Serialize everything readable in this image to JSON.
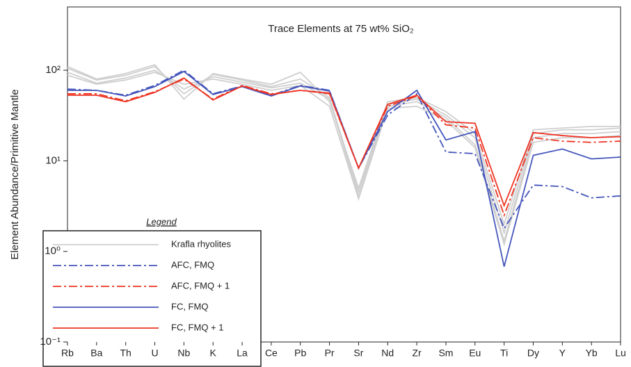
{
  "chart_data": {
    "type": "line",
    "title": "Trace Elements at 75 wt% SiO₂",
    "y_label": "Element Abundance/Primitive Mantle",
    "legend_title": "Legend",
    "log_scale": true,
    "categories": [
      "Rb",
      "Ba",
      "Th",
      "U",
      "Nb",
      "K",
      "La",
      "Ce",
      "Pb",
      "Pr",
      "Sr",
      "Nd",
      "Zr",
      "Sm",
      "Eu",
      "Ti",
      "Dy",
      "Y",
      "Yb",
      "Lu"
    ],
    "ylim": [
      0.1,
      500
    ],
    "yticks": [
      {
        "value": 0.1,
        "label": "10⁻¹"
      },
      {
        "value": 1,
        "label": "10⁰"
      },
      {
        "value": 10,
        "label": "10¹"
      },
      {
        "value": 100,
        "label": "10²"
      }
    ],
    "series": [
      {
        "name": "Krafla rhyolites",
        "color": "#cfcfcf",
        "dash": "solid",
        "samples": [
          [
            105,
            78,
            88,
            110,
            55,
            90,
            78,
            66,
            80,
            50,
            4.5,
            42,
            48,
            32,
            18,
            1.6,
            20,
            22,
            22,
            23
          ],
          [
            95,
            72,
            82,
            100,
            62,
            85,
            74,
            64,
            72,
            48,
            4.0,
            40,
            45,
            30,
            15,
            1.3,
            18,
            20,
            20,
            21
          ],
          [
            110,
            80,
            92,
            115,
            48,
            92,
            80,
            70,
            95,
            45,
            5.0,
            45,
            50,
            35,
            20,
            2.0,
            22,
            23,
            24,
            24
          ],
          [
            88,
            70,
            78,
            95,
            70,
            80,
            70,
            60,
            68,
            40,
            3.8,
            38,
            40,
            28,
            14,
            1.2,
            16,
            18,
            18,
            19
          ]
        ]
      },
      {
        "name": "AFC, FMQ",
        "color": "#4455bb",
        "dash": "dashdot",
        "values": [
          62,
          60,
          53,
          68,
          100,
          55,
          67,
          53,
          68,
          60,
          8.3,
          32,
          55,
          12.5,
          12,
          1.8,
          5.4,
          5.2,
          3.9,
          4.1
        ]
      },
      {
        "name": "AFC, FMQ + 1",
        "color": "#ee3322",
        "dash": "dashdot",
        "values": [
          55,
          55,
          46,
          58,
          80,
          48,
          68,
          55,
          60,
          55,
          8.3,
          40,
          52,
          25,
          23,
          2.5,
          18,
          16.5,
          16,
          16.5
        ]
      },
      {
        "name": "FC, FMQ",
        "color": "#4455bb",
        "dash": "solid",
        "values": [
          60,
          60,
          52,
          66,
          97,
          54,
          66,
          52,
          67,
          59,
          8.3,
          35,
          60,
          17,
          21,
          0.68,
          11.5,
          13.5,
          10.5,
          11
        ]
      },
      {
        "name": "FC, FMQ + 1",
        "color": "#ee3322",
        "dash": "solid",
        "values": [
          53,
          53,
          45,
          57,
          82,
          47,
          67,
          54,
          60,
          56,
          8.3,
          42,
          53,
          27,
          26,
          3.2,
          20.5,
          19,
          18,
          18.5
        ]
      }
    ]
  }
}
